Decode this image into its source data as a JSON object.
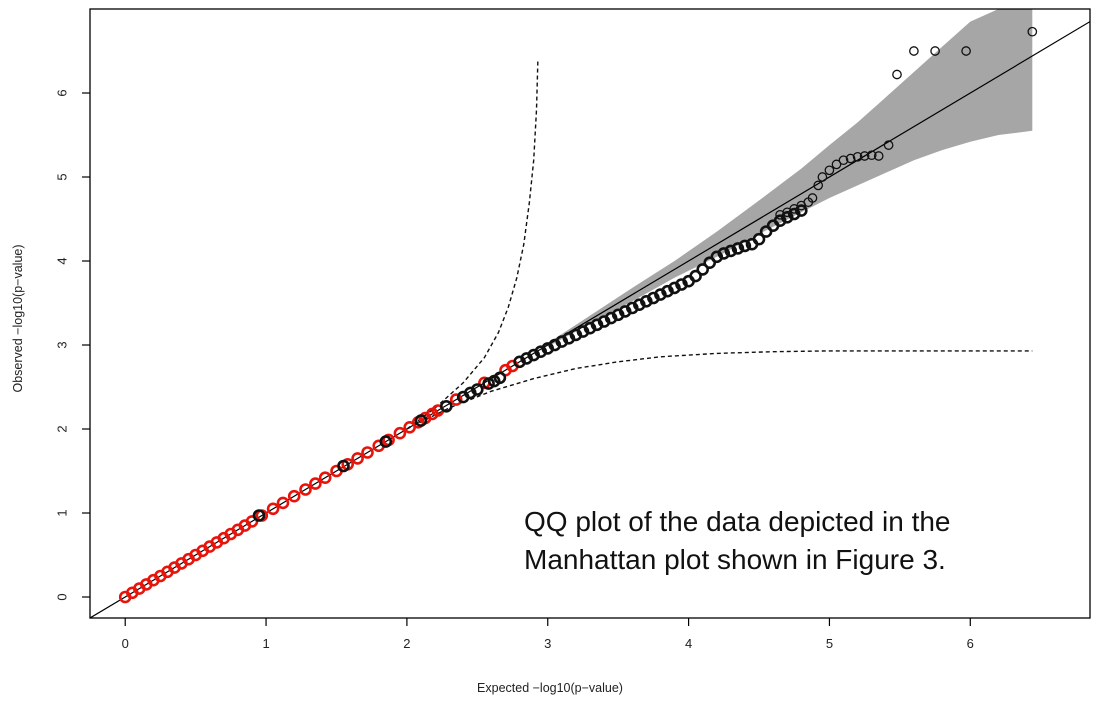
{
  "chart_data": {
    "type": "scatter",
    "xlabel": "Expected −log10(p−value)",
    "ylabel": "Observed −log10(p−value)",
    "xlim": [
      -0.25,
      6.85
    ],
    "ylim": [
      -0.25,
      7.0
    ],
    "x_ticks": [
      0,
      1,
      2,
      3,
      4,
      5,
      6
    ],
    "y_ticks": [
      0,
      1,
      2,
      3,
      4,
      5,
      6
    ],
    "grid": false,
    "legend": "none",
    "annotation": {
      "lines": [
        "QQ plot of the data depicted in the",
        "Manhattan plot shown in Figure 3."
      ]
    },
    "colors": {
      "red_points": "#e8140c",
      "black_points": "#111111",
      "band_fill": "#a6a6a6",
      "reference_line": "#000000"
    },
    "reference_line": {
      "slope": 1,
      "intercept": 0
    },
    "confidence_band": {
      "x": [
        3.0,
        3.3,
        3.6,
        3.9,
        4.2,
        4.5,
        4.8,
        5.0,
        5.2,
        5.4,
        5.6,
        5.8,
        6.0,
        6.2,
        6.44
      ],
      "upper": [
        3.02,
        3.35,
        3.68,
        4.0,
        4.35,
        4.72,
        5.1,
        5.38,
        5.65,
        5.95,
        6.25,
        6.55,
        6.85,
        7.0,
        7.0
      ],
      "lower": [
        2.98,
        3.25,
        3.52,
        3.8,
        4.05,
        4.32,
        4.58,
        4.75,
        4.9,
        5.05,
        5.2,
        5.32,
        5.42,
        5.5,
        5.55
      ]
    },
    "dashed_upper": {
      "x": [
        2.0,
        2.2,
        2.4,
        2.55,
        2.65,
        2.72,
        2.78,
        2.83,
        2.87,
        2.9,
        2.92,
        2.93
      ],
      "y": [
        2.0,
        2.25,
        2.55,
        2.85,
        3.15,
        3.45,
        3.8,
        4.2,
        4.7,
        5.2,
        5.8,
        6.4
      ]
    },
    "dashed_lower": {
      "x": [
        2.0,
        2.3,
        2.6,
        2.9,
        3.2,
        3.5,
        3.8,
        4.2,
        4.6,
        5.0,
        5.5,
        6.0,
        6.44
      ],
      "y": [
        2.0,
        2.25,
        2.45,
        2.6,
        2.72,
        2.8,
        2.86,
        2.9,
        2.92,
        2.93,
        2.93,
        2.93,
        2.93
      ]
    },
    "series": [
      {
        "color": "red",
        "x": [
          0.0,
          0.05,
          0.1,
          0.15,
          0.2,
          0.25,
          0.3,
          0.35,
          0.4,
          0.45,
          0.5,
          0.55,
          0.6,
          0.65,
          0.7,
          0.75,
          0.8,
          0.85,
          0.9,
          0.97,
          1.05,
          1.12,
          1.2,
          1.28,
          1.35,
          1.42,
          1.5,
          1.58,
          1.65,
          1.72,
          1.8,
          1.87,
          1.95,
          2.02,
          2.08,
          2.13,
          2.18,
          2.22,
          2.35,
          2.55,
          2.7,
          2.75
        ],
        "y": [
          0.0,
          0.05,
          0.1,
          0.15,
          0.2,
          0.25,
          0.3,
          0.35,
          0.4,
          0.45,
          0.5,
          0.55,
          0.6,
          0.65,
          0.7,
          0.75,
          0.8,
          0.85,
          0.9,
          0.97,
          1.05,
          1.12,
          1.2,
          1.28,
          1.35,
          1.42,
          1.5,
          1.58,
          1.65,
          1.72,
          1.8,
          1.87,
          1.95,
          2.02,
          2.08,
          2.13,
          2.18,
          2.22,
          2.35,
          2.55,
          2.7,
          2.75
        ]
      },
      {
        "color": "black",
        "x": [
          0.95,
          1.55,
          1.85,
          2.1,
          2.28,
          2.4,
          2.45,
          2.5,
          2.58,
          2.62,
          2.66,
          2.8,
          2.85,
          2.9,
          2.95,
          3.0,
          3.05,
          3.1,
          3.15,
          3.2,
          3.25,
          3.3,
          3.35,
          3.4,
          3.45,
          3.5,
          3.55,
          3.6,
          3.65,
          3.7,
          3.75,
          3.8,
          3.85,
          3.9,
          3.95,
          4.0,
          4.05,
          4.1,
          4.15,
          4.2,
          4.25,
          4.3,
          4.35,
          4.4,
          4.45,
          4.5,
          4.55,
          4.6,
          4.65,
          4.7,
          4.75,
          4.8
        ],
        "y": [
          0.97,
          1.56,
          1.85,
          2.1,
          2.27,
          2.38,
          2.43,
          2.47,
          2.54,
          2.57,
          2.61,
          2.8,
          2.84,
          2.88,
          2.92,
          2.96,
          3.0,
          3.04,
          3.08,
          3.12,
          3.16,
          3.2,
          3.24,
          3.28,
          3.32,
          3.36,
          3.4,
          3.44,
          3.48,
          3.52,
          3.56,
          3.6,
          3.64,
          3.68,
          3.72,
          3.76,
          3.82,
          3.9,
          3.98,
          4.05,
          4.09,
          4.12,
          4.15,
          4.18,
          4.2,
          4.26,
          4.35,
          4.42,
          4.48,
          4.52,
          4.56,
          4.6
        ]
      },
      {
        "color": "black-open",
        "x": [
          4.65,
          4.7,
          4.75,
          4.8,
          4.85,
          4.88,
          4.92,
          4.95,
          5.0,
          5.05,
          5.1,
          5.15,
          5.2,
          5.25,
          5.3,
          5.35,
          5.42,
          5.48,
          5.6,
          5.75,
          5.97,
          6.44
        ],
        "y": [
          4.55,
          4.58,
          4.62,
          4.66,
          4.7,
          4.75,
          4.9,
          5.0,
          5.08,
          5.15,
          5.2,
          5.22,
          5.24,
          5.25,
          5.26,
          5.25,
          5.38,
          6.22,
          6.5,
          6.5,
          6.5,
          6.73
        ]
      }
    ]
  }
}
